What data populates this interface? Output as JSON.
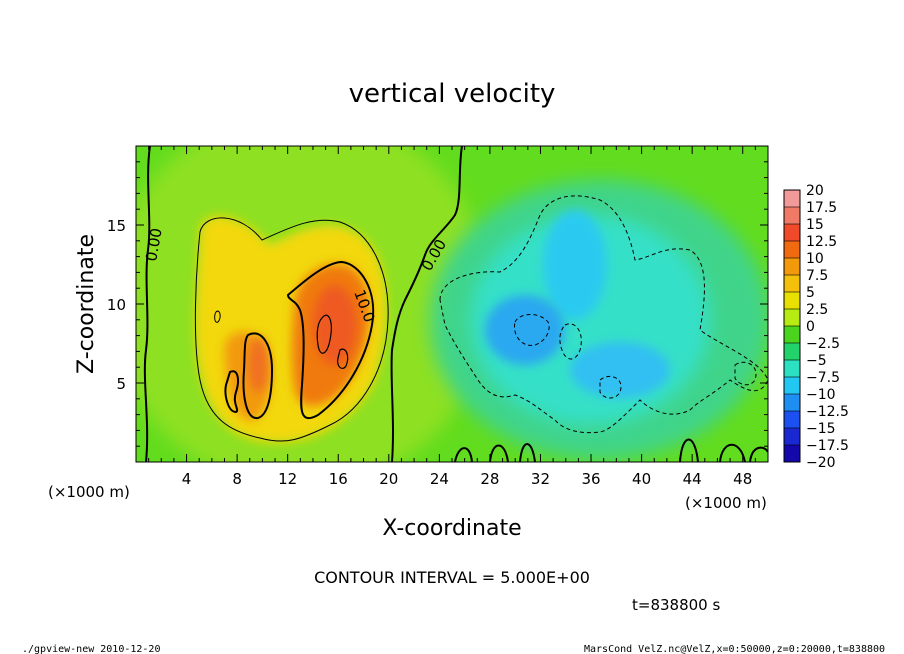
{
  "chart_data": {
    "type": "heatmap",
    "title": "vertical velocity",
    "xlabel": "X-coordinate",
    "ylabel": "Z-coordinate",
    "x_unit": "(×1000 m)",
    "z_unit": "(×1000 m)",
    "xlim": [
      0,
      50
    ],
    "ylim": [
      0,
      20
    ],
    "x_ticks": [
      "4",
      "8",
      "12",
      "16",
      "20",
      "24",
      "28",
      "32",
      "36",
      "40",
      "44",
      "48"
    ],
    "y_ticks": [
      "5",
      "10",
      "15"
    ],
    "contour_labels": [
      "0.00",
      "0.00",
      "10.0"
    ],
    "contour_interval": "CONTOUR INTERVAL = 5.000E+00",
    "time_label": "t=838800 s",
    "footer_left": "./gpview-new  2010-12-20",
    "footer_right": "MarsCond_VelZ.nc@VelZ,x=0:50000,z=0:20000,t=838800",
    "colorbar": {
      "labels": [
        "20",
        "17.5",
        "15",
        "12.5",
        "10",
        "7.5",
        "5",
        "2.5",
        "0",
        "−2.5",
        "−5",
        "−7.5",
        "−10",
        "−12.5",
        "−15",
        "−17.5",
        "−20"
      ],
      "colors": [
        "#f29a9a",
        "#f07a66",
        "#f04a2a",
        "#f26a10",
        "#f39a0c",
        "#f3c00c",
        "#e8e000",
        "#b6ec12",
        "#4ad41e",
        "#22d26a",
        "#2ce0c2",
        "#22c8f2",
        "#1f8ef2",
        "#1c50f0",
        "#1a28d2",
        "#1408aa",
        "#5a129e"
      ]
    },
    "cells": [
      {
        "x": [
          0,
          50
        ],
        "z": [
          0,
          20
        ],
        "w": 1
      },
      {
        "x": [
          5.5,
          20
        ],
        "z": [
          2,
          15.5
        ],
        "w": 5
      },
      {
        "x": [
          6.5,
          13
        ],
        "z": [
          3,
          9
        ],
        "w": 10
      },
      {
        "x": [
          12.5,
          19
        ],
        "z": [
          3.5,
          12.5
        ],
        "w": 12
      },
      {
        "x": [
          26,
          43
        ],
        "z": [
          2,
          20
        ],
        "w": -5
      },
      {
        "x": [
          30,
          37
        ],
        "z": [
          5,
          16
        ],
        "w": -8
      },
      {
        "x": [
          28,
          32
        ],
        "z": [
          6,
          10
        ],
        "w": -10
      }
    ],
    "grid": false
  }
}
